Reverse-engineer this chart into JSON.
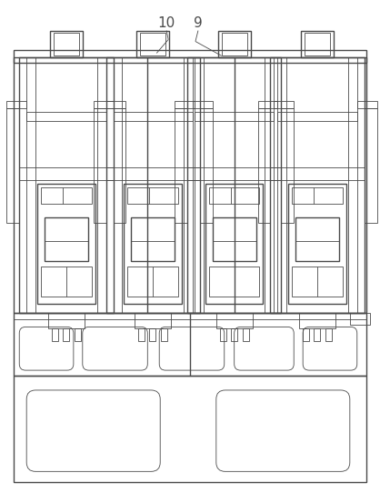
{
  "fig_width": 4.18,
  "fig_height": 5.42,
  "dpi": 100,
  "bg_color": "#ffffff",
  "line_color": "#4a4a4a",
  "lw_main": 1.0,
  "lw_thin": 0.6,
  "lw_thick": 1.2
}
